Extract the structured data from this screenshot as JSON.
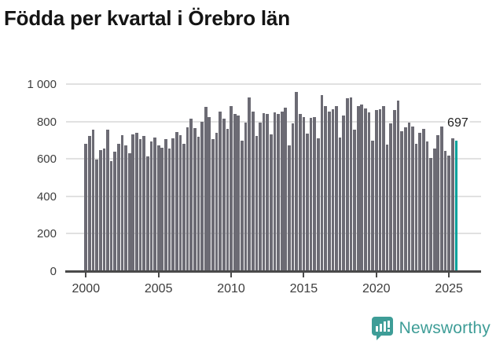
{
  "title": "Födda per kvartal i Örebro län",
  "footer": {
    "brand": "Newsworthy"
  },
  "chart_data": {
    "type": "bar",
    "title": "Födda per kvartal i Örebro län",
    "x_period": "quarterly",
    "x_start": "2000 Q1",
    "x_end": "2025 Q3",
    "ylim": [
      0,
      1000
    ],
    "grid": true,
    "bar_color": "#6c6b74",
    "highlight_color": "#00a19b",
    "highlight_index": 102,
    "highlight_label": "697",
    "yticks": [
      {
        "value": 0,
        "label": "0"
      },
      {
        "value": 200,
        "label": "200"
      },
      {
        "value": 400,
        "label": "400"
      },
      {
        "value": 600,
        "label": "600"
      },
      {
        "value": 800,
        "label": "800"
      },
      {
        "value": 1000,
        "label": "1 000"
      }
    ],
    "xticks": [
      {
        "year": 2000,
        "label": "2000"
      },
      {
        "year": 2005,
        "label": "2005"
      },
      {
        "year": 2010,
        "label": "2010"
      },
      {
        "year": 2015,
        "label": "2015"
      },
      {
        "year": 2020,
        "label": "2020"
      },
      {
        "year": 2025,
        "label": "2025"
      }
    ],
    "values": [
      680,
      724,
      759,
      599,
      648,
      655,
      756,
      588,
      640,
      683,
      728,
      675,
      630,
      734,
      739,
      706,
      725,
      616,
      693,
      714,
      675,
      661,
      707,
      658,
      711,
      745,
      728,
      683,
      770,
      815,
      767,
      718,
      798,
      879,
      826,
      707,
      742,
      854,
      815,
      763,
      885,
      843,
      833,
      697,
      794,
      931,
      854,
      725,
      795,
      847,
      840,
      731,
      851,
      843,
      854,
      875,
      672,
      791,
      959,
      840,
      826,
      735,
      819,
      823,
      710,
      941,
      882,
      854,
      868,
      885,
      714,
      833,
      927,
      931,
      759,
      882,
      893,
      871,
      850,
      700,
      861,
      868,
      882,
      679,
      791,
      861,
      913,
      749,
      770,
      794,
      776,
      683,
      739,
      763,
      696,
      605,
      658,
      728,
      773,
      644,
      619,
      710,
      697
    ]
  }
}
